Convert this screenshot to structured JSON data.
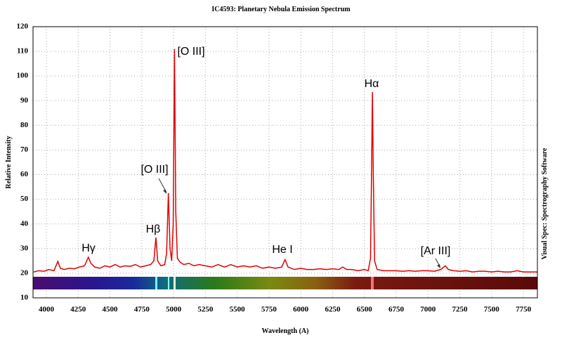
{
  "chart_data": {
    "type": "line",
    "title": "IC4593: Planetary Nebula Emission Spectrum",
    "x_label": "Wavelength (A)",
    "y_label": "Relative Intensity",
    "side_label": "Visual Spec: Spectrography Software",
    "annotations": [
      "Hγ",
      "Hβ",
      "[O III]",
      "[O III]",
      "He I",
      "Hα",
      "[Ar III]"
    ],
    "color": "#e00000",
    "grid": true,
    "xlim": [
      3895,
      7860
    ],
    "ylim": [
      10,
      120
    ],
    "xticks": [
      4000,
      4250,
      4500,
      4750,
      5000,
      5250,
      5500,
      5750,
      6000,
      6250,
      6500,
      6750,
      7000,
      7250,
      7500,
      7750
    ],
    "yticks": [
      10,
      20,
      30,
      40,
      50,
      60,
      70,
      80,
      90,
      100,
      110,
      120
    ],
    "x": [
      3900,
      3940,
      3980,
      4020,
      4060,
      4090,
      4110,
      4140,
      4180,
      4220,
      4260,
      4300,
      4330,
      4350,
      4380,
      4420,
      4460,
      4500,
      4540,
      4580,
      4620,
      4660,
      4700,
      4740,
      4780,
      4820,
      4845,
      4861,
      4875,
      4900,
      4930,
      4945,
      4959,
      4972,
      4985,
      4997,
      5007,
      5017,
      5030,
      5050,
      5080,
      5120,
      5160,
      5200,
      5250,
      5300,
      5350,
      5400,
      5450,
      5500,
      5550,
      5600,
      5650,
      5700,
      5750,
      5800,
      5850,
      5876,
      5900,
      5950,
      6000,
      6050,
      6100,
      6150,
      6200,
      6250,
      6300,
      6330,
      6360,
      6400,
      6450,
      6500,
      6530,
      6548,
      6556,
      6563,
      6570,
      6580,
      6600,
      6650,
      6700,
      6750,
      6800,
      6850,
      6900,
      6950,
      7000,
      7050,
      7100,
      7136,
      7160,
      7200,
      7250,
      7300,
      7350,
      7400,
      7450,
      7500,
      7550,
      7600,
      7650,
      7700,
      7750,
      7800,
      7860
    ],
    "values": [
      20.5,
      21,
      20.8,
      21.5,
      21,
      24.8,
      22,
      21.5,
      22,
      21.8,
      22.5,
      23,
      26.5,
      24,
      22.5,
      22,
      23,
      22.5,
      23.5,
      22.5,
      23,
      22.8,
      23.5,
      22.5,
      23,
      23.5,
      25,
      34.5,
      25,
      23,
      23.5,
      28,
      52.5,
      30,
      25,
      40,
      111,
      45,
      26,
      24.5,
      23.5,
      24,
      23,
      23.5,
      23,
      22.5,
      23.5,
      22.5,
      23.5,
      22.5,
      23,
      22.5,
      23,
      22,
      22.5,
      22,
      22.5,
      25.5,
      22.5,
      21.5,
      22,
      21.5,
      21.5,
      21.8,
      21.5,
      21.8,
      21.5,
      22.5,
      21.5,
      21.5,
      21,
      21.5,
      21,
      26,
      60,
      93.5,
      60,
      25,
      21.5,
      21,
      21,
      21,
      20.8,
      21,
      20.8,
      21,
      21,
      20.8,
      21.5,
      23,
      21.5,
      21,
      20.8,
      21,
      20.5,
      20.8,
      20.8,
      20.5,
      20.8,
      20.5,
      20.5,
      21,
      20.5,
      20.5,
      20.5
    ]
  }
}
